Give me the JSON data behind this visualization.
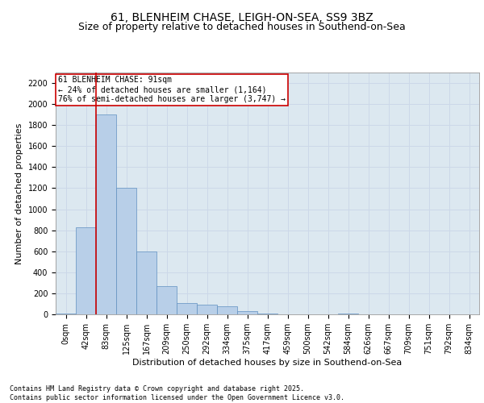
{
  "title1": "61, BLENHEIM CHASE, LEIGH-ON-SEA, SS9 3BZ",
  "title2": "Size of property relative to detached houses in Southend-on-Sea",
  "xlabel": "Distribution of detached houses by size in Southend-on-Sea",
  "ylabel": "Number of detached properties",
  "annotation_title": "61 BLENHEIM CHASE: 91sqm",
  "annotation_line1": "← 24% of detached houses are smaller (1,164)",
  "annotation_line2": "76% of semi-detached houses are larger (3,747) →",
  "footer": "Contains HM Land Registry data © Crown copyright and database right 2025.\nContains public sector information licensed under the Open Government Licence v3.0.",
  "bin_labels": [
    "0sqm",
    "42sqm",
    "83sqm",
    "125sqm",
    "167sqm",
    "209sqm",
    "250sqm",
    "292sqm",
    "334sqm",
    "375sqm",
    "417sqm",
    "459sqm",
    "500sqm",
    "542sqm",
    "584sqm",
    "626sqm",
    "667sqm",
    "709sqm",
    "751sqm",
    "792sqm",
    "834sqm"
  ],
  "bar_values": [
    10,
    830,
    1900,
    1200,
    600,
    270,
    110,
    95,
    80,
    30,
    5,
    0,
    0,
    0,
    5,
    0,
    0,
    0,
    0,
    0,
    0
  ],
  "bar_color": "#b8cfe8",
  "bar_edge_color": "#6090c0",
  "grid_color": "#ccd8e8",
  "background_color": "#dce8f0",
  "vline_color": "#cc0000",
  "vline_pos": 1.5,
  "ylim": [
    0,
    2300
  ],
  "yticks": [
    0,
    200,
    400,
    600,
    800,
    1000,
    1200,
    1400,
    1600,
    1800,
    2000,
    2200
  ],
  "annotation_box_color": "#cc0000",
  "title_fontsize": 10,
  "subtitle_fontsize": 9,
  "axis_label_fontsize": 8,
  "tick_fontsize": 7,
  "annotation_fontsize": 7,
  "footer_fontsize": 6
}
